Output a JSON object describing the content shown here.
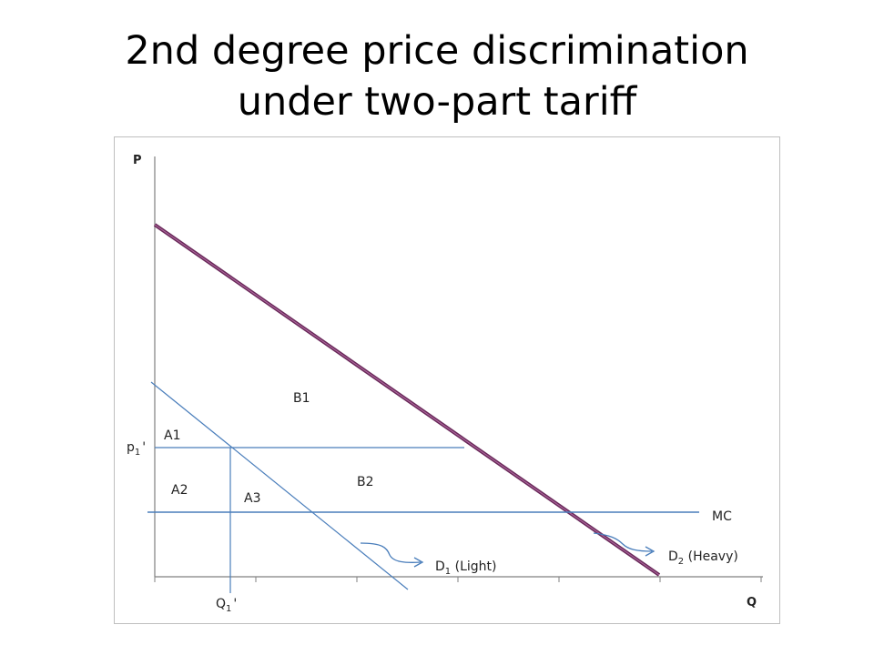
{
  "slide": {
    "title_line1": "2nd degree price discrimination",
    "title_line2": "under two-part tariff"
  },
  "diagram": {
    "y_axis_label": "P",
    "x_axis_label": "Q",
    "price_label": {
      "base": "p",
      "sub": "1",
      "suffix": "'"
    },
    "quantity_label": {
      "base": "Q",
      "sub": "1",
      "suffix": "'"
    },
    "regions": {
      "a1": "A1",
      "a2": "A2",
      "a3": "A3",
      "b1": "B1",
      "b2": "B2"
    },
    "mc_label": "MC",
    "demand_light": {
      "base": "D",
      "sub": "1",
      "rest": " (Light)"
    },
    "demand_heavy": {
      "base": "D",
      "sub": "2",
      "rest": " (Heavy)"
    },
    "colors": {
      "heavy_demand": "#6a2a5a",
      "line_blue": "#4a7ebb",
      "axis": "#808080",
      "frame": "#bfbfbf"
    }
  }
}
